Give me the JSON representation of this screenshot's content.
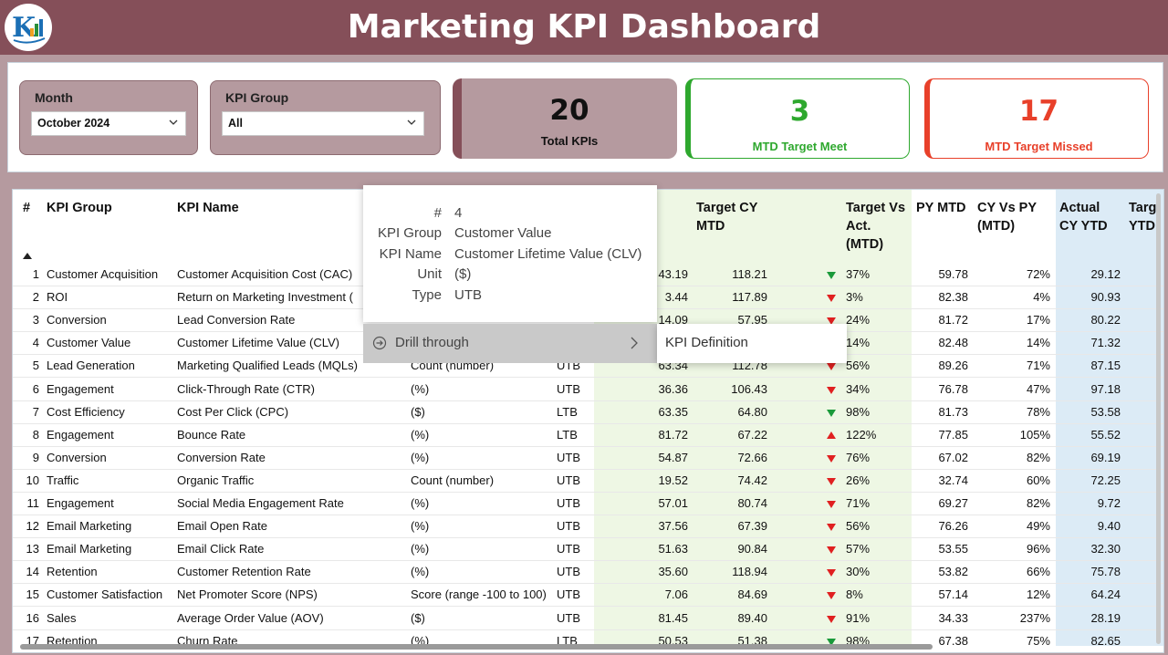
{
  "header": {
    "title": "Marketing KPI Dashboard"
  },
  "filters": {
    "month": {
      "label": "Month",
      "value": "October 2024"
    },
    "kpi_group": {
      "label": "KPI Group",
      "value": "All"
    }
  },
  "cards": {
    "total": {
      "value": "20",
      "label": "Total KPIs"
    },
    "meet": {
      "value": "3",
      "label": "MTD Target Meet"
    },
    "missed": {
      "value": "17",
      "label": "MTD Target Missed"
    }
  },
  "colors": {
    "header": "#854f59",
    "panel": "#b59a9f",
    "meet": "#2ea82e",
    "missed": "#e8402a",
    "mtd_bg": "#eef7e4",
    "ytd_bg": "#dcebf6",
    "down": "#e02020",
    "up_good": "#1a9a3a"
  },
  "table": {
    "headers": {
      "num": "#",
      "group": "KPI Group",
      "name": "KPI Name",
      "target_cy_mtd": "Target CY\nMTD",
      "tva": "Target Vs\nAct.\n(MTD)",
      "py_mtd": "PY MTD",
      "cy_vs_py": "CY Vs PY\n(MTD)",
      "actual_cy_ytd": "Actual\nCY YTD",
      "target_ytd": "Targ\nYTD"
    },
    "rows": [
      {
        "num": "1",
        "group": "Customer Acquisition",
        "name": "Customer Acquisition Cost (CAC)",
        "unit": "",
        "type": "",
        "actual": "43.19",
        "target": "118.21",
        "arrow": "down-green",
        "tva": "37%",
        "py": "59.78",
        "cypy": "72%",
        "ytd": "29.12"
      },
      {
        "num": "2",
        "group": "ROI",
        "name": "Return on Marketing Investment (",
        "unit": "",
        "type": "",
        "actual": "3.44",
        "target": "117.89",
        "arrow": "down",
        "tva": "3%",
        "py": "82.38",
        "cypy": "4%",
        "ytd": "90.93"
      },
      {
        "num": "3",
        "group": "Conversion",
        "name": "Lead Conversion Rate",
        "unit": "",
        "type": "",
        "actual": "14.09",
        "target": "57.95",
        "arrow": "down",
        "tva": "24%",
        "py": "81.72",
        "cypy": "17%",
        "ytd": "80.22"
      },
      {
        "num": "4",
        "group": "Customer Value",
        "name": "Customer Lifetime Value (CLV)",
        "unit": "",
        "type": "",
        "actual": "",
        "target": "",
        "arrow": "",
        "tva": "14%",
        "py": "82.48",
        "cypy": "14%",
        "ytd": "71.32"
      },
      {
        "num": "5",
        "group": "Lead Generation",
        "name": "Marketing Qualified Leads (MQLs)",
        "unit": "Count (number)",
        "type": "UTB",
        "actual": "63.34",
        "target": "112.78",
        "arrow": "down",
        "tva": "56%",
        "py": "89.26",
        "cypy": "71%",
        "ytd": "87.15"
      },
      {
        "num": "6",
        "group": "Engagement",
        "name": "Click-Through Rate (CTR)",
        "unit": "(%)",
        "type": "UTB",
        "actual": "36.36",
        "target": "106.43",
        "arrow": "down",
        "tva": "34%",
        "py": "76.78",
        "cypy": "47%",
        "ytd": "97.18"
      },
      {
        "num": "7",
        "group": "Cost Efficiency",
        "name": "Cost Per Click (CPC)",
        "unit": "($)",
        "type": "LTB",
        "actual": "63.35",
        "target": "64.80",
        "arrow": "down-green",
        "tva": "98%",
        "py": "81.73",
        "cypy": "78%",
        "ytd": "53.58"
      },
      {
        "num": "8",
        "group": "Engagement",
        "name": "Bounce Rate",
        "unit": "(%)",
        "type": "LTB",
        "actual": "81.72",
        "target": "67.22",
        "arrow": "up",
        "tva": "122%",
        "py": "77.85",
        "cypy": "105%",
        "ytd": "55.52"
      },
      {
        "num": "9",
        "group": "Conversion",
        "name": "Conversion Rate",
        "unit": "(%)",
        "type": "UTB",
        "actual": "54.87",
        "target": "72.66",
        "arrow": "down",
        "tva": "76%",
        "py": "67.02",
        "cypy": "82%",
        "ytd": "69.19"
      },
      {
        "num": "10",
        "group": "Traffic",
        "name": "Organic Traffic",
        "unit": "Count (number)",
        "type": "UTB",
        "actual": "19.52",
        "target": "74.42",
        "arrow": "down",
        "tva": "26%",
        "py": "32.74",
        "cypy": "60%",
        "ytd": "72.25"
      },
      {
        "num": "11",
        "group": "Engagement",
        "name": "Social Media Engagement Rate",
        "unit": "(%)",
        "type": "UTB",
        "actual": "57.01",
        "target": "80.74",
        "arrow": "down",
        "tva": "71%",
        "py": "69.27",
        "cypy": "82%",
        "ytd": "9.72"
      },
      {
        "num": "12",
        "group": "Email Marketing",
        "name": "Email Open Rate",
        "unit": "(%)",
        "type": "UTB",
        "actual": "37.56",
        "target": "67.39",
        "arrow": "down",
        "tva": "56%",
        "py": "76.26",
        "cypy": "49%",
        "ytd": "9.40"
      },
      {
        "num": "13",
        "group": "Email Marketing",
        "name": "Email Click Rate",
        "unit": "(%)",
        "type": "UTB",
        "actual": "51.63",
        "target": "90.84",
        "arrow": "down",
        "tva": "57%",
        "py": "53.55",
        "cypy": "96%",
        "ytd": "32.30"
      },
      {
        "num": "14",
        "group": "Retention",
        "name": "Customer Retention Rate",
        "unit": "(%)",
        "type": "UTB",
        "actual": "35.60",
        "target": "118.94",
        "arrow": "down",
        "tva": "30%",
        "py": "53.82",
        "cypy": "66%",
        "ytd": "75.78"
      },
      {
        "num": "15",
        "group": "Customer Satisfaction",
        "name": "Net Promoter Score (NPS)",
        "unit": "Score (range -100 to 100)",
        "type": "UTB",
        "actual": "7.06",
        "target": "84.69",
        "arrow": "down",
        "tva": "8%",
        "py": "57.14",
        "cypy": "12%",
        "ytd": "64.24"
      },
      {
        "num": "16",
        "group": "Sales",
        "name": "Average Order Value (AOV)",
        "unit": "($)",
        "type": "UTB",
        "actual": "81.45",
        "target": "89.40",
        "arrow": "down",
        "tva": "91%",
        "py": "34.33",
        "cypy": "237%",
        "ytd": "28.19"
      },
      {
        "num": "17",
        "group": "Retention",
        "name": "Churn Rate",
        "unit": "(%)",
        "type": "LTB",
        "actual": "50.53",
        "target": "51.38",
        "arrow": "down-green",
        "tva": "98%",
        "py": "67.38",
        "cypy": "75%",
        "ytd": "82.65"
      }
    ]
  },
  "tooltip": {
    "num_key": "#",
    "num_val": "4",
    "group_key": "KPI Group",
    "group_val": "Customer Value",
    "name_key": "KPI Name",
    "name_val": "Customer Lifetime Value (CLV)",
    "unit_key": "Unit",
    "unit_val": "($)",
    "type_key": "Type",
    "type_val": "UTB"
  },
  "context_menu": {
    "drill_through": "Drill through",
    "kpi_definition": "KPI Definition"
  }
}
